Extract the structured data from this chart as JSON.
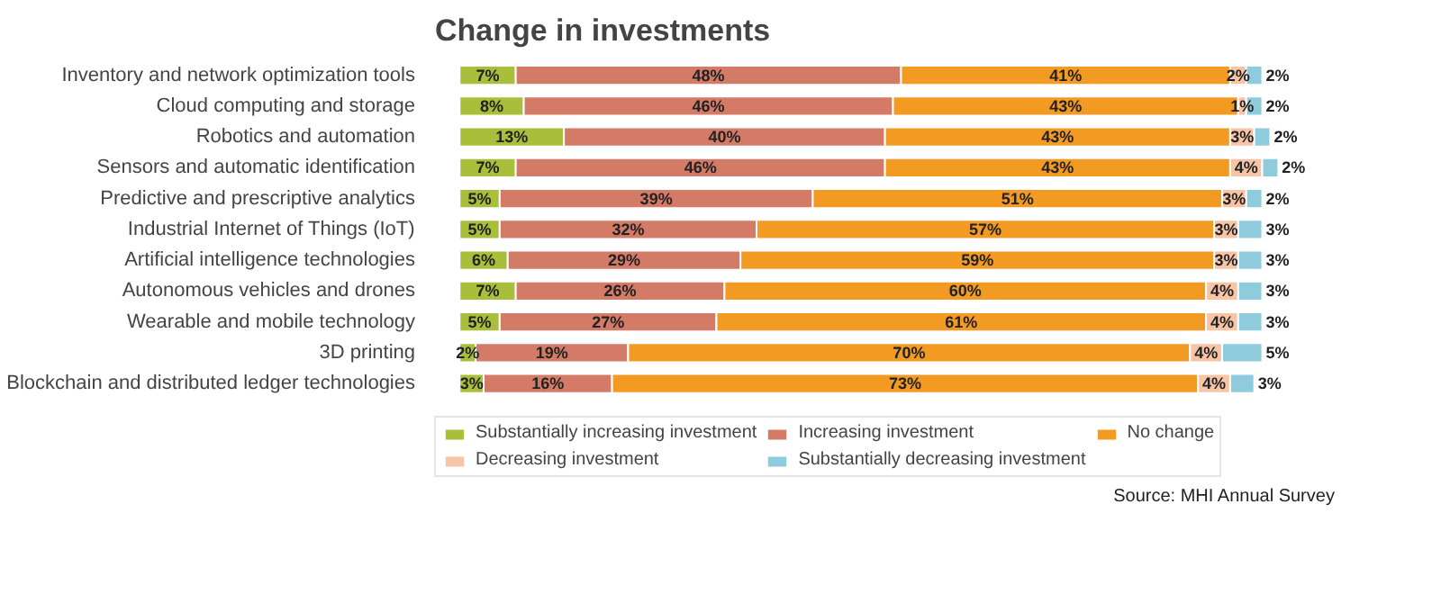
{
  "chart_data": {
    "type": "bar",
    "orientation": "horizontal",
    "stacked": true,
    "title": "Change in investments",
    "categories": [
      "Inventory and network optimization tools",
      "Cloud computing and storage",
      "Robotics and automation",
      "Sensors and automatic identification",
      "Predictive and prescriptive analytics",
      "Industrial Internet of Things (IoT)",
      "Artificial intelligence technologies",
      "Autonomous vehicles and drones",
      "Wearable and mobile technology",
      "3D printing",
      "Blockchain and distributed ledger technologies"
    ],
    "series": [
      {
        "name": "Substantially increasing investment",
        "color": "#a9bf3b",
        "values": [
          7,
          8,
          13,
          7,
          5,
          5,
          6,
          7,
          5,
          2,
          3
        ],
        "value_labels": [
          "7%",
          "8%",
          "13%",
          "7%",
          "5%",
          "5%",
          "6%",
          "7%",
          "5%",
          "2%",
          "3%"
        ]
      },
      {
        "name": "Increasing investment",
        "color": "#d47b67",
        "values": [
          48,
          46,
          40,
          46,
          39,
          32,
          29,
          26,
          27,
          19,
          16
        ],
        "value_labels": [
          "48%",
          "46%",
          "40%",
          "46%",
          "39%",
          "32%",
          "29%",
          "26%",
          "27%",
          "19%",
          "16%"
        ]
      },
      {
        "name": "No change",
        "color": "#f39a22",
        "values": [
          41,
          43,
          43,
          43,
          51,
          57,
          59,
          60,
          61,
          70,
          73
        ],
        "value_labels": [
          "41%",
          "43%",
          "43%",
          "43%",
          "51%",
          "57%",
          "59%",
          "60%",
          "61%",
          "70%",
          "73%"
        ]
      },
      {
        "name": "Decreasing investment",
        "color": "#f8c4a6",
        "values": [
          2,
          1,
          3,
          4,
          3,
          3,
          3,
          4,
          4,
          4,
          4
        ],
        "value_labels": [
          "2%",
          "1%",
          "3%",
          "4%",
          "3%",
          "3%",
          "3%",
          "4%",
          "4%",
          "4%",
          "4%"
        ]
      },
      {
        "name": "Substantially decreasing investment",
        "color": "#8ecbdc",
        "values": [
          2,
          2,
          2,
          2,
          2,
          3,
          3,
          3,
          3,
          5,
          3
        ],
        "value_labels": [
          "2%",
          "2%",
          "2%",
          "2%",
          "2%",
          "3%",
          "3%",
          "3%",
          "3%",
          "5%",
          "3%"
        ]
      }
    ],
    "legend": "bottom",
    "grid": false,
    "annotations": [
      "Source: MHI Annual Survey"
    ]
  }
}
